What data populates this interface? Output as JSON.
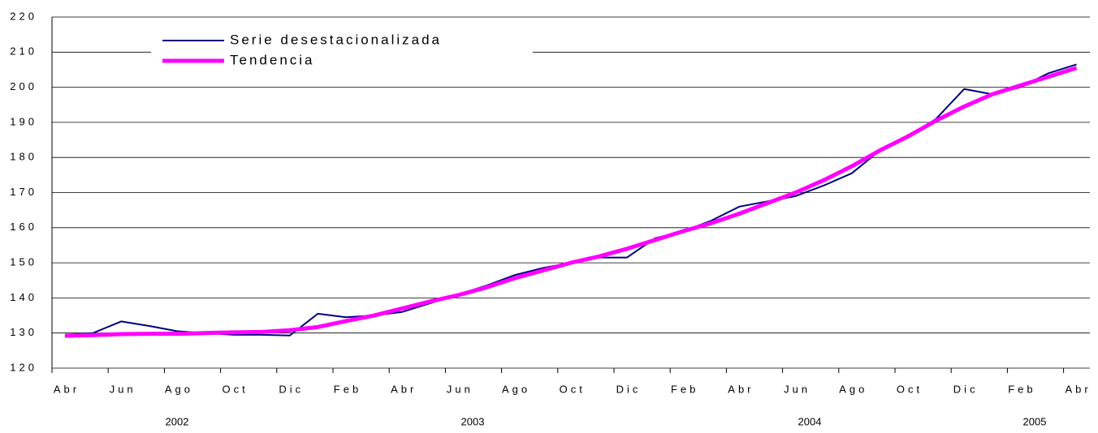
{
  "chart_data": {
    "type": "line",
    "categories": [
      "Abr",
      null,
      "Jun",
      null,
      "Ago",
      null,
      "Oct",
      null,
      "Dic",
      null,
      "Feb",
      null,
      "Abr",
      null,
      "Jun",
      null,
      "Ago",
      null,
      "Oct",
      null,
      "Dic",
      null,
      "Feb",
      null,
      "Abr",
      null,
      "Jun",
      null,
      "Ago",
      null,
      "Oct",
      null,
      "Dic",
      null,
      "Feb",
      null,
      "Abr"
    ],
    "year_labels": [
      "2002",
      "2003",
      "2004",
      "2005"
    ],
    "series": [
      {
        "name": "Serie desestacionalizada",
        "color": "#000080",
        "width": 2,
        "values": [
          129.5,
          130,
          133.3,
          132,
          130.5,
          130,
          129.5,
          129.5,
          129.3,
          135.5,
          134.5,
          135,
          136,
          138.5,
          141,
          143.5,
          146.5,
          148.5,
          150,
          151.5,
          151.5,
          157,
          159,
          162,
          166,
          167.5,
          169,
          172,
          175.5,
          182,
          186,
          191,
          199.5,
          198,
          200,
          204,
          206.5
        ]
      },
      {
        "name": "Tendencia",
        "color": "#ff00ff",
        "width": 5,
        "values": [
          129.2,
          129.4,
          129.7,
          129.8,
          129.8,
          130,
          130.2,
          130.3,
          130.8,
          131.7,
          133.4,
          135,
          137,
          139,
          140.8,
          143,
          145.6,
          147.8,
          150,
          151.8,
          154,
          156.5,
          159,
          161.3,
          164,
          167,
          170,
          173.5,
          177.5,
          182,
          186,
          190.5,
          194.5,
          198,
          200.5,
          203,
          205.5
        ]
      }
    ],
    "ylim": [
      120,
      220
    ],
    "yticks": [
      120,
      130,
      140,
      150,
      160,
      170,
      180,
      190,
      200,
      210,
      220
    ],
    "grid": true
  }
}
